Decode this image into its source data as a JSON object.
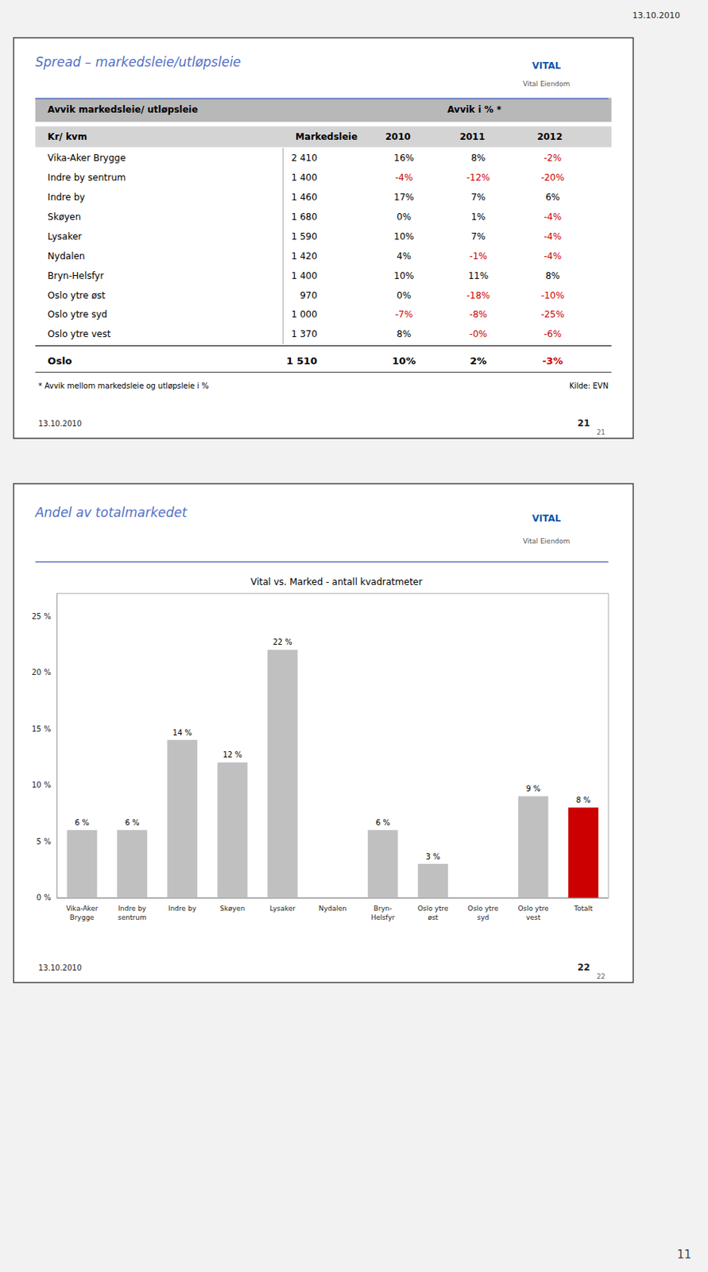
{
  "annotations": [
    "13.10.2010",
    "11"
  ],
  "chart_data": [
    {
      "type": "table",
      "title": "Spread – markedsleie/utløpsleie",
      "logo": [
        "VITAL",
        "Vital Eiendom"
      ],
      "header": [
        "Avvik markedsleie/ utløpsleie",
        "Avvik i % *"
      ],
      "columns": [
        "Kr/ kvm",
        "Markedsleie",
        "2010",
        "2011",
        "2012"
      ],
      "rows": [
        [
          "Vika-Aker Brygge",
          "2 410",
          "16%",
          "8%",
          "-2%"
        ],
        [
          "Indre by sentrum",
          "1 400",
          "-4%",
          "-12%",
          "-20%"
        ],
        [
          "Indre by",
          "1 460",
          "17%",
          "7%",
          "6%"
        ],
        [
          "Skøyen",
          "1 680",
          "0%",
          "1%",
          "-4%"
        ],
        [
          "Lysaker",
          "1 590",
          "10%",
          "7%",
          "-4%"
        ],
        [
          "Nydalen",
          "1 420",
          "4%",
          "-1%",
          "-4%"
        ],
        [
          "Bryn-Helsfyr",
          "1 400",
          "10%",
          "11%",
          "8%"
        ],
        [
          "Oslo ytre øst",
          "970",
          "0%",
          "-18%",
          "-10%"
        ],
        [
          "Oslo ytre syd",
          "1 000",
          "-7%",
          "-8%",
          "-25%"
        ],
        [
          "Oslo ytre vest",
          "1 370",
          "8%",
          "-0%",
          "-6%"
        ]
      ],
      "total": [
        "Oslo",
        "1 510",
        "10%",
        "2%",
        "-3%"
      ],
      "footnote": "* Avvik mellom markedsleie og utløpsleie i %",
      "source": "Kilde: EVN",
      "footer": [
        "13.10.2010",
        "21",
        "21"
      ],
      "color": "#cc0000"
    },
    {
      "type": "bar",
      "slide_title": "Andel av totalmarkedet",
      "logo": [
        "VITAL",
        "Vital Eiendom"
      ],
      "title": "Vital vs. Marked - antall kvadratmeter",
      "categories": [
        "Vika-Aker\nBrygge",
        "Indre by\nsentrum",
        "Indre by",
        "Skøyen",
        "Lysaker",
        "Nydalen",
        "Bryn-\nHelsfyr",
        "Oslo ytre\nøst",
        "Oslo ytre\nsyd",
        "Oslo ytre\nvest",
        "Totalt"
      ],
      "values": [
        6,
        6,
        14,
        12,
        22,
        0,
        6,
        3,
        0,
        9,
        8
      ],
      "colors": [
        "#c0c0c0",
        "#c0c0c0",
        "#c0c0c0",
        "#c0c0c0",
        "#c0c0c0",
        "#c0c0c0",
        "#c0c0c0",
        "#c0c0c0",
        "#c0c0c0",
        "#c0c0c0",
        "#cc0000"
      ],
      "data_labels": true,
      "value_labels": [
        "6 %",
        "6 %",
        "14 %",
        "12 %",
        "22 %",
        null,
        "6 %",
        "3 %",
        null,
        "9 %",
        "8 %"
      ],
      "ylim": [
        0,
        27
      ],
      "yticks": [
        {
          "value": 0,
          "label": "0 %"
        },
        {
          "value": 5,
          "label": "5 %"
        },
        {
          "value": 10,
          "label": "10 %"
        },
        {
          "value": 15,
          "label": "15 %"
        },
        {
          "value": 20,
          "label": "20 %"
        },
        {
          "value": 25,
          "label": "25 %"
        }
      ],
      "grid": false,
      "footer": [
        "13.10.2010",
        "22",
        "22"
      ]
    }
  ]
}
